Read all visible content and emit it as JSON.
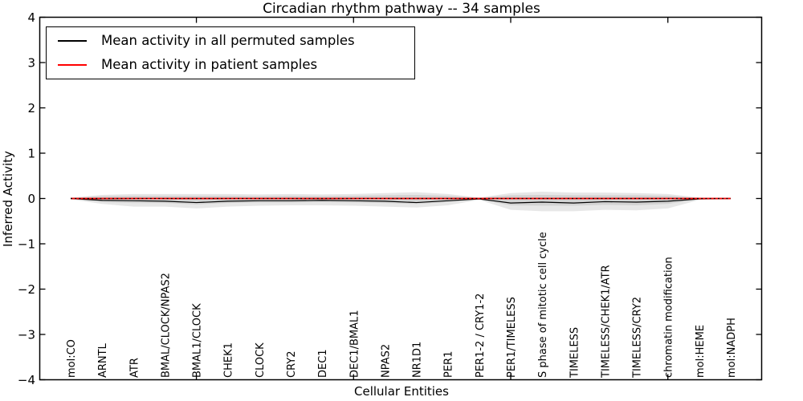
{
  "chart_data": {
    "type": "line",
    "title": "Circadian rhythm pathway -- 34 samples",
    "xlabel": "Cellular Entities",
    "ylabel": "Inferred Activity",
    "ylim": [
      -4,
      4
    ],
    "yticks": [
      -4,
      -3,
      -2,
      -1,
      0,
      1,
      2,
      3,
      4
    ],
    "xtick_indices": [
      4,
      9,
      14,
      19
    ],
    "grid": false,
    "legend_position": "upper left",
    "categories": [
      "mol:CO",
      "ARNTL",
      "ATR",
      "BMAL/CLOCK/NPAS2",
      "BMAL1/CLOCK",
      "CHEK1",
      "CLOCK",
      "CRY2",
      "DEC1",
      "DEC1/BMAL1",
      "NPAS2",
      "NR1D1",
      "PER1",
      "PER1-2 / CRY1-2",
      "PER1/TIMELESS",
      "S phase of mitotic cell cycle",
      "TIMELESS",
      "TIMELESS/CHEK1/ATR",
      "TIMELESS/CRY2",
      "chromatin modification",
      "mol:HEME",
      "mol:NADPH"
    ],
    "series": [
      {
        "name": "Mean activity in all permuted samples",
        "color": "#000000",
        "style": "solid",
        "width": 1.2,
        "values": [
          0,
          -0.04,
          -0.05,
          -0.06,
          -0.09,
          -0.06,
          -0.05,
          -0.05,
          -0.04,
          -0.05,
          -0.06,
          -0.09,
          -0.05,
          -0.01,
          -0.1,
          -0.08,
          -0.1,
          -0.07,
          -0.08,
          -0.06,
          -0.01,
          0
        ]
      },
      {
        "name": "Mean activity in patient samples",
        "color": "#ff0000",
        "style": "solid",
        "width": 1.8,
        "values": [
          0,
          0,
          0,
          0,
          0,
          0,
          0,
          0,
          0,
          0,
          0,
          0,
          0,
          0,
          0,
          0,
          0,
          0,
          0,
          0,
          0,
          0
        ]
      }
    ],
    "bands": [
      {
        "name": "permuted-envelope",
        "color": "rgba(120,120,120,0.18)",
        "upper": [
          0.02,
          0.08,
          0.1,
          0.1,
          0.1,
          0.1,
          0.09,
          0.1,
          0.09,
          0.1,
          0.12,
          0.14,
          0.1,
          0.02,
          0.12,
          0.15,
          0.13,
          0.13,
          0.12,
          0.1,
          0.02,
          0.01
        ],
        "lower": [
          -0.02,
          -0.12,
          -0.18,
          -0.18,
          -0.22,
          -0.18,
          -0.16,
          -0.15,
          -0.15,
          -0.16,
          -0.18,
          -0.2,
          -0.15,
          -0.03,
          -0.25,
          -0.28,
          -0.28,
          -0.25,
          -0.26,
          -0.22,
          -0.03,
          -0.01
        ]
      },
      {
        "name": "patient-envelope",
        "color": "rgba(120,120,120,0.18)",
        "upper": [
          0.01,
          0.05,
          0.06,
          0.06,
          0.06,
          0.06,
          0.05,
          0.06,
          0.05,
          0.06,
          0.07,
          0.08,
          0.06,
          0.01,
          0.07,
          0.08,
          0.07,
          0.07,
          0.07,
          0.06,
          0.01,
          0.005
        ],
        "lower": [
          -0.01,
          -0.08,
          -0.1,
          -0.1,
          -0.13,
          -0.1,
          -0.09,
          -0.09,
          -0.08,
          -0.09,
          -0.1,
          -0.12,
          -0.08,
          -0.02,
          -0.15,
          -0.16,
          -0.16,
          -0.14,
          -0.15,
          -0.12,
          -0.02,
          -0.005
        ]
      }
    ],
    "zero_line": {
      "y": 0,
      "color": "#000000",
      "style": "dotted"
    }
  },
  "legend": {
    "items": [
      {
        "label": "Mean activity in all permuted samples",
        "color": "#000000"
      },
      {
        "label": "Mean activity in patient samples",
        "color": "#ff0000"
      }
    ]
  }
}
